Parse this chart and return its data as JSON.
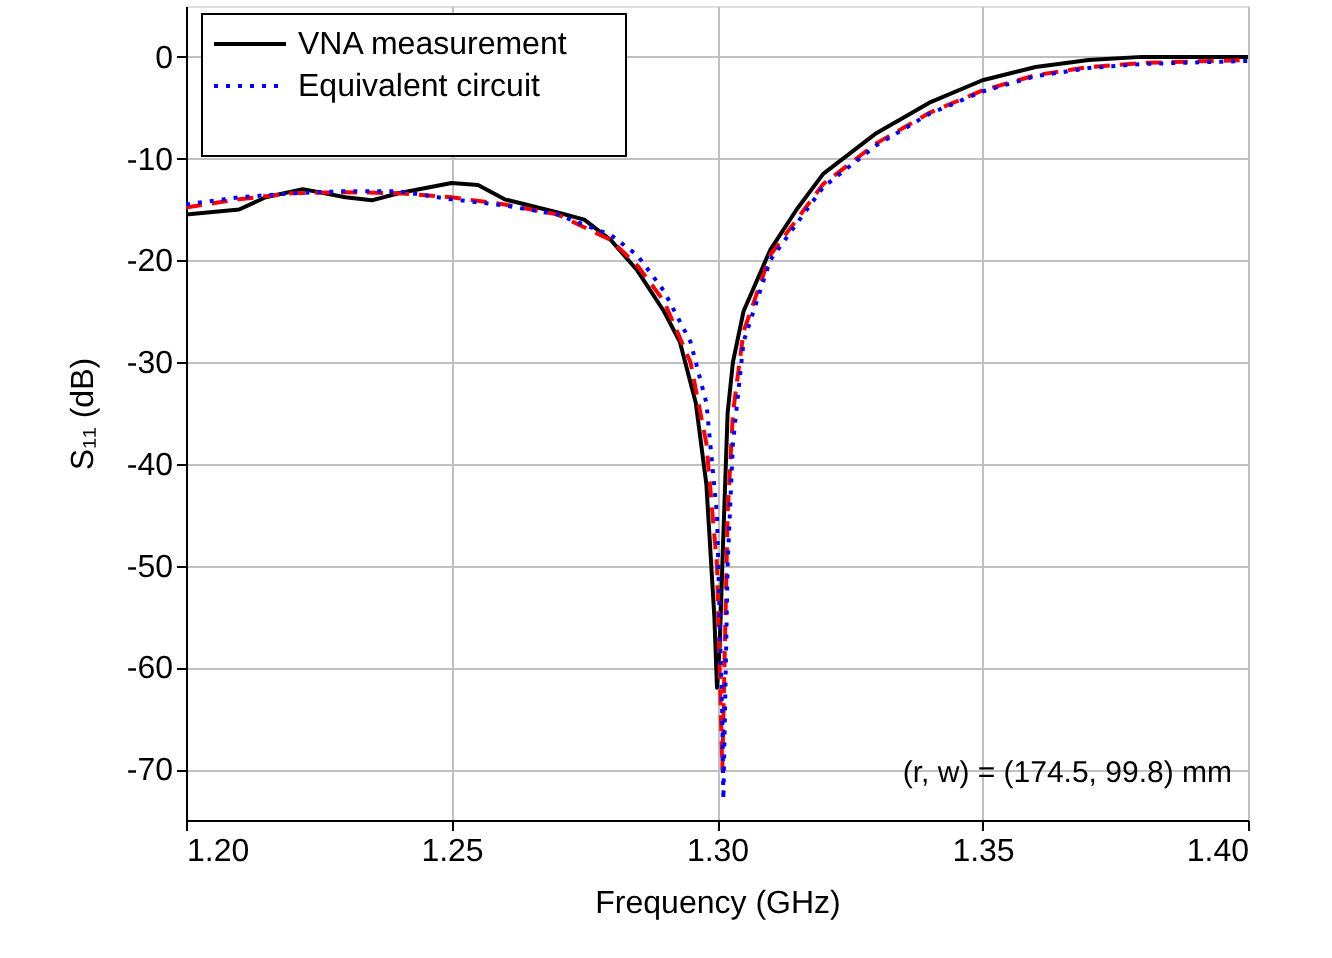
{
  "chart_data": {
    "type": "line",
    "xlabel": "Frequency (GHz)",
    "ylabel": "S₁₁ (dB)",
    "xlim": [
      1.2,
      1.4
    ],
    "ylim": [
      -75,
      5
    ],
    "xticks": [
      {
        "value": 1.2,
        "label": "1.20"
      },
      {
        "value": 1.25,
        "label": "1.25"
      },
      {
        "value": 1.3,
        "label": "1.30"
      },
      {
        "value": 1.35,
        "label": "1.35"
      },
      {
        "value": 1.4,
        "label": "1.40"
      }
    ],
    "yticks": [
      0,
      -10,
      -20,
      -30,
      -40,
      -50,
      -60,
      -70
    ],
    "grid": true,
    "legend": "top left",
    "marker": "none",
    "annotations": [
      "(r, w) = (174.5, 99.8) mm"
    ],
    "series": [
      {
        "name": "VNA measurement",
        "color": "#000000",
        "line_style": "solid",
        "x": [
          1.2,
          1.21,
          1.215,
          1.222,
          1.23,
          1.235,
          1.24,
          1.25,
          1.255,
          1.26,
          1.27,
          1.275,
          1.28,
          1.285,
          1.29,
          1.293,
          1.296,
          1.298,
          1.2995,
          1.3,
          1.3005,
          1.301,
          1.302,
          1.303,
          1.305,
          1.31,
          1.315,
          1.32,
          1.33,
          1.34,
          1.35,
          1.36,
          1.37,
          1.38,
          1.4
        ],
        "values": [
          -15.5,
          -15,
          -13.8,
          -13,
          -13.8,
          -14.1,
          -13.4,
          -12.4,
          -12.6,
          -14,
          -15.3,
          -16,
          -18,
          -21,
          -25,
          -28,
          -34,
          -42,
          -55,
          -62,
          -58,
          -50,
          -35,
          -30,
          -25,
          -19,
          -15,
          -11.5,
          -7.5,
          -4.5,
          -2.3,
          -1,
          -0.3,
          0,
          0
        ]
      },
      {
        "name": null,
        "color": "#ff0000",
        "line_style": "dashed",
        "x": [
          1.2,
          1.21,
          1.22,
          1.23,
          1.24,
          1.25,
          1.26,
          1.27,
          1.28,
          1.285,
          1.29,
          1.295,
          1.298,
          1.3,
          1.301,
          1.302,
          1.303,
          1.305,
          1.31,
          1.32,
          1.33,
          1.34,
          1.35,
          1.36,
          1.37,
          1.38,
          1.4
        ],
        "values": [
          -14.8,
          -14,
          -13.4,
          -13.3,
          -13.4,
          -13.8,
          -14.5,
          -15.5,
          -18,
          -20.5,
          -24,
          -30,
          -38,
          -50,
          -70,
          -45,
          -35,
          -27,
          -19.5,
          -12.5,
          -8.5,
          -5.5,
          -3.3,
          -1.8,
          -1,
          -0.6,
          -0.3
        ]
      },
      {
        "name": "Equivalent circuit",
        "color": "#0000ff",
        "line_style": "dotted",
        "x": [
          1.2,
          1.21,
          1.22,
          1.23,
          1.24,
          1.25,
          1.26,
          1.27,
          1.28,
          1.285,
          1.29,
          1.295,
          1.298,
          1.3,
          1.301,
          1.3012,
          1.302,
          1.303,
          1.305,
          1.31,
          1.32,
          1.33,
          1.34,
          1.35,
          1.36,
          1.37,
          1.38,
          1.4
        ],
        "values": [
          -14.5,
          -13.8,
          -13.4,
          -13.2,
          -13.2,
          -14,
          -14.6,
          -15.5,
          -17.5,
          -19.5,
          -23,
          -28,
          -34,
          -45,
          -65,
          -73,
          -50,
          -38,
          -28,
          -20,
          -12.8,
          -8.7,
          -5.6,
          -3.4,
          -1.9,
          -1.1,
          -0.7,
          -0.4
        ]
      }
    ]
  }
}
